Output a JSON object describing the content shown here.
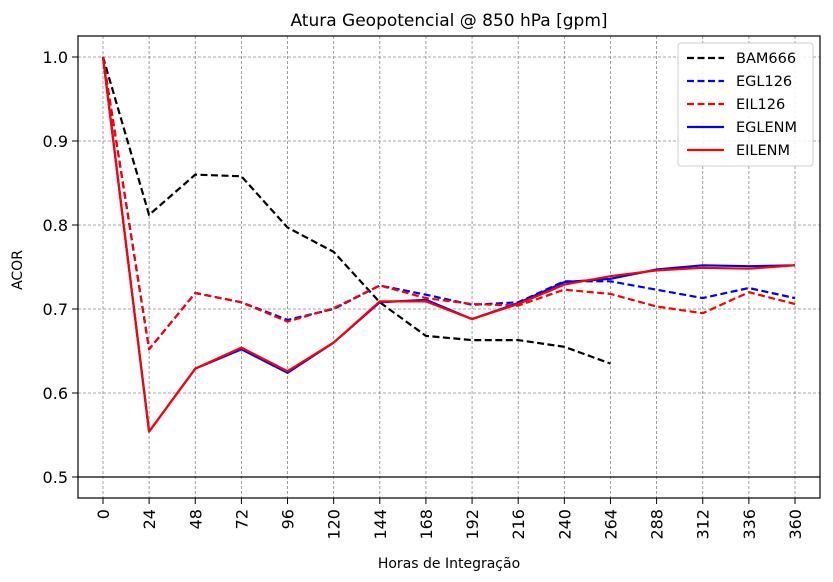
{
  "chart_data": {
    "type": "line",
    "title": "Atura Geopotencial @ 850 hPa [gpm]",
    "xlabel": "Horas de Integração",
    "ylabel": "ACOR",
    "x": [
      0,
      24,
      48,
      72,
      96,
      120,
      144,
      168,
      192,
      216,
      240,
      264,
      288,
      312,
      336,
      360
    ],
    "x_tick_labels": [
      "0",
      "24",
      "48",
      "72",
      "96",
      "120",
      "144",
      "168",
      "192",
      "216",
      "240",
      "264",
      "288",
      "312",
      "336",
      "360"
    ],
    "y_ticks": [
      0.5,
      0.6,
      0.7,
      0.8,
      0.9,
      1.0
    ],
    "y_tick_labels": [
      "0.5",
      "0.6",
      "0.7",
      "0.8",
      "0.9",
      "1.0"
    ],
    "xlim": [
      -13,
      373
    ],
    "ylim": [
      0.475,
      1.025
    ],
    "grid": true,
    "reference_line": 0.5,
    "legend_position": "top-right",
    "series": [
      {
        "name": "BAM666",
        "color": "#000000",
        "dashed": true,
        "values": [
          1.0,
          0.812,
          0.86,
          0.858,
          0.797,
          0.768,
          0.708,
          0.668,
          0.663,
          0.663,
          0.655,
          0.635,
          null,
          null,
          null,
          null
        ]
      },
      {
        "name": "EGL126",
        "color": "#0000ff",
        "dashed": true,
        "values": [
          1.0,
          0.652,
          0.719,
          0.708,
          0.687,
          0.7,
          0.728,
          0.717,
          0.705,
          0.708,
          0.733,
          0.733,
          0.723,
          0.713,
          0.725,
          0.713
        ]
      },
      {
        "name": "EIL126",
        "color": "#ff0000",
        "dashed": true,
        "values": [
          1.0,
          0.652,
          0.719,
          0.708,
          0.685,
          0.701,
          0.728,
          0.713,
          0.706,
          0.704,
          0.723,
          0.718,
          0.703,
          0.695,
          0.72,
          0.706
        ]
      },
      {
        "name": "EGLENM",
        "color": "#0000ff",
        "dashed": false,
        "values": [
          1.0,
          0.554,
          0.629,
          0.652,
          0.624,
          0.66,
          0.708,
          0.711,
          0.688,
          0.707,
          0.732,
          0.736,
          0.747,
          0.752,
          0.751,
          0.752
        ]
      },
      {
        "name": "EILENM",
        "color": "#ff0000",
        "dashed": false,
        "values": [
          1.0,
          0.554,
          0.629,
          0.654,
          0.626,
          0.66,
          0.709,
          0.709,
          0.688,
          0.706,
          0.729,
          0.739,
          0.746,
          0.749,
          0.748,
          0.752
        ]
      }
    ]
  }
}
